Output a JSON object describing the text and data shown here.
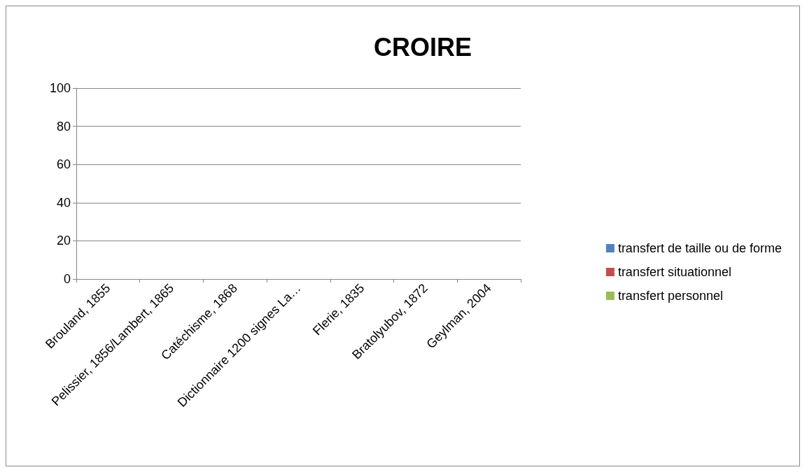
{
  "chart_data": {
    "type": "bar",
    "title": "CROIRE",
    "categories": [
      "Brouland, 1855",
      "Pelissier, 1856/Lambert, 1865",
      "Catéchisme, 1868",
      "Dictionnaire 1200 signes La…",
      "Flerie, 1835",
      "Bratolyubov, 1872",
      "Geylman, 2004"
    ],
    "series": [
      {
        "name": "transfert de taille ou de forme",
        "color": "#4f81bd",
        "values": [
          0,
          0,
          0,
          0,
          0,
          0,
          0
        ]
      },
      {
        "name": "transfert situationnel",
        "color": "#c0504d",
        "values": [
          0,
          0,
          0,
          0,
          0,
          0,
          0
        ]
      },
      {
        "name": "transfert personnel",
        "color": "#9bbb59",
        "values": [
          0,
          0,
          0,
          0,
          0,
          0,
          0
        ]
      }
    ],
    "ylim": [
      0,
      100
    ],
    "yticks": [
      0,
      20,
      40,
      60,
      80,
      100
    ],
    "grid": "y",
    "legend": "right"
  }
}
